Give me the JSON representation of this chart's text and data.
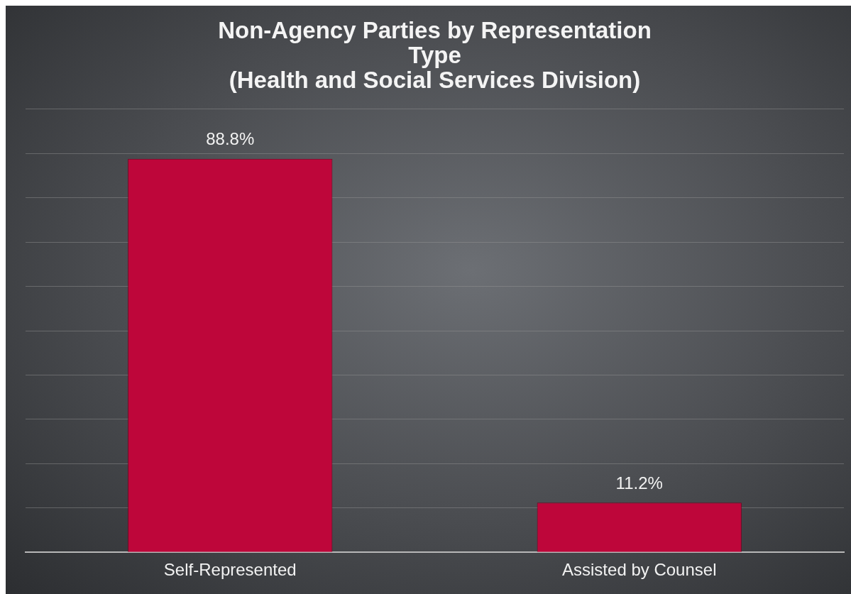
{
  "chart_data": {
    "type": "bar",
    "title": "Non-Agency Parties by Representation\nType\n(Health and Social Services Division)",
    "categories": [
      "Self-Represented",
      "Assisted by Counsel"
    ],
    "values": [
      88.8,
      11.2
    ],
    "value_labels": [
      "88.8%",
      "11.2%"
    ],
    "color": "#be063a",
    "ylim": [
      0,
      100
    ],
    "yticks": [
      {
        "value": 0,
        "label": null
      },
      {
        "value": 10,
        "label": null
      },
      {
        "value": 20,
        "label": null
      },
      {
        "value": 30,
        "label": null
      },
      {
        "value": 40,
        "label": null
      },
      {
        "value": 50,
        "label": null
      },
      {
        "value": 60,
        "label": null
      },
      {
        "value": 70,
        "label": null
      },
      {
        "value": 80,
        "label": null
      },
      {
        "value": 90,
        "label": null
      },
      {
        "value": 100,
        "label": null
      }
    ],
    "grid": "y",
    "tick_labels": "x",
    "legend": false
  }
}
